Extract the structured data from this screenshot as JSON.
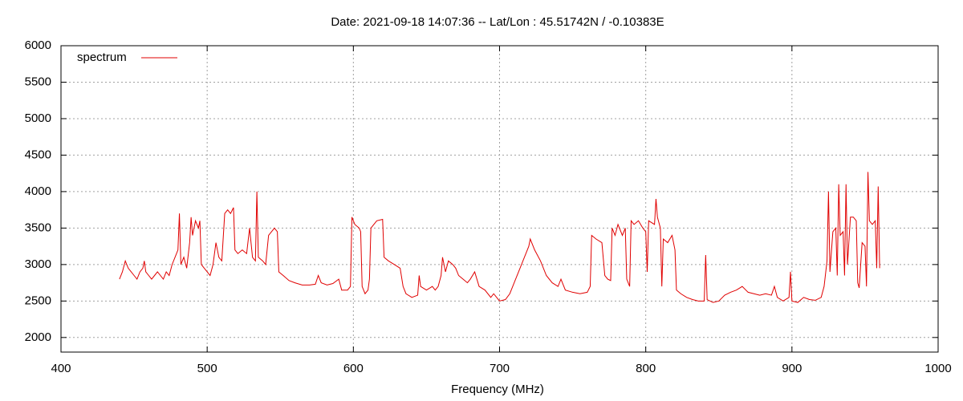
{
  "chart_data": {
    "type": "line",
    "title": "Date: 2021-09-18 14:07:36  --  Lat/Lon : 45.51742N / -0.10383E",
    "x_label": "Frequency (MHz)",
    "x": [
      440,
      442,
      444,
      446,
      448,
      450,
      452,
      454,
      456,
      457,
      458,
      460,
      462,
      464,
      466,
      468,
      470,
      472,
      474,
      476,
      478,
      480,
      481,
      482,
      484,
      486,
      488,
      489,
      490,
      492,
      494,
      495,
      496,
      498,
      500,
      502,
      504,
      506,
      508,
      510,
      512,
      514,
      516,
      518,
      519,
      521,
      524,
      527,
      529,
      531,
      533,
      534,
      535,
      538,
      540,
      542,
      544,
      546,
      548,
      549,
      552,
      556,
      560,
      565,
      570,
      574,
      576,
      578,
      582,
      586,
      590,
      592,
      596,
      598,
      599,
      601,
      604,
      605,
      606,
      608,
      610,
      611,
      612,
      616,
      620,
      621,
      624,
      628,
      632,
      634,
      636,
      640,
      644,
      645,
      646,
      650,
      654,
      656,
      658,
      660,
      661,
      663,
      665,
      668,
      670,
      672,
      675,
      678,
      680,
      683,
      686,
      690,
      694,
      696,
      698,
      700,
      704,
      707,
      710,
      714,
      718,
      720,
      721,
      724,
      728,
      732,
      736,
      740,
      742,
      745,
      750,
      755,
      760,
      762,
      763,
      766,
      770,
      772,
      774,
      776,
      777,
      779,
      781,
      784,
      786,
      787,
      789,
      790,
      792,
      795,
      798,
      800,
      801,
      802,
      806,
      807,
      808,
      810,
      811,
      812,
      815,
      818,
      820,
      821,
      824,
      828,
      832,
      836,
      840,
      841,
      842,
      846,
      850,
      854,
      858,
      862,
      866,
      870,
      874,
      878,
      882,
      886,
      888,
      890,
      894,
      898,
      899,
      900,
      904,
      908,
      912,
      916,
      920,
      922,
      924,
      925,
      926,
      928,
      930,
      931,
      932,
      933,
      935,
      936,
      937,
      938,
      940,
      942,
      944,
      945,
      946,
      948,
      950,
      951,
      952,
      953,
      955,
      957,
      958,
      959,
      960
    ],
    "series": [
      {
        "name": "spectrum",
        "color": "#e00000",
        "values": [
          2800,
          2900,
          3050,
          2950,
          2900,
          2850,
          2800,
          2900,
          2950,
          3050,
          2900,
          2850,
          2800,
          2850,
          2900,
          2850,
          2800,
          2900,
          2850,
          3000,
          3100,
          3200,
          3700,
          3000,
          3100,
          2950,
          3300,
          3650,
          3400,
          3600,
          3500,
          3600,
          3000,
          2950,
          2900,
          2850,
          3000,
          3300,
          3100,
          3050,
          3700,
          3750,
          3700,
          3780,
          3200,
          3150,
          3200,
          3150,
          3500,
          3100,
          3050,
          4000,
          3100,
          3050,
          3000,
          3400,
          3450,
          3500,
          3450,
          2900,
          2850,
          2780,
          2750,
          2720,
          2720,
          2730,
          2850,
          2750,
          2720,
          2740,
          2800,
          2650,
          2650,
          2700,
          3650,
          3550,
          3500,
          3450,
          2700,
          2600,
          2650,
          2800,
          3500,
          3600,
          3620,
          3100,
          3050,
          3000,
          2950,
          2700,
          2600,
          2550,
          2580,
          2850,
          2700,
          2650,
          2700,
          2650,
          2700,
          2850,
          3100,
          2900,
          3050,
          3000,
          2950,
          2850,
          2800,
          2750,
          2800,
          2900,
          2700,
          2650,
          2550,
          2600,
          2550,
          2500,
          2520,
          2600,
          2750,
          2950,
          3150,
          3250,
          3350,
          3200,
          3050,
          2850,
          2750,
          2700,
          2800,
          2650,
          2620,
          2600,
          2620,
          2700,
          3400,
          3350,
          3300,
          2850,
          2800,
          2780,
          3500,
          3400,
          3550,
          3400,
          3500,
          2800,
          2700,
          3600,
          3550,
          3600,
          3500,
          3450,
          2900,
          3600,
          3550,
          3900,
          3650,
          3500,
          2700,
          3350,
          3300,
          3400,
          3200,
          2650,
          2600,
          2550,
          2520,
          2500,
          2500,
          3130,
          2520,
          2480,
          2500,
          2580,
          2620,
          2650,
          2700,
          2620,
          2600,
          2580,
          2600,
          2580,
          2700,
          2550,
          2500,
          2550,
          2900,
          2500,
          2480,
          2550,
          2520,
          2510,
          2550,
          2700,
          3050,
          4000,
          2900,
          3450,
          3500,
          2850,
          4100,
          3400,
          3450,
          2850,
          4100,
          3000,
          3650,
          3650,
          3600,
          2750,
          2680,
          3300,
          3250,
          2700,
          4270,
          3600,
          3550,
          3600,
          2950,
          4070,
          2950
        ]
      }
    ],
    "xlim": [
      400,
      1000
    ],
    "xticks": [
      400,
      500,
      600,
      700,
      800,
      900,
      1000
    ],
    "ylim": [
      1800,
      6000
    ],
    "yticks": [
      2000,
      2500,
      3000,
      3500,
      4000,
      4500,
      5000,
      5500,
      6000
    ],
    "grid": true,
    "legend": "top-left"
  }
}
